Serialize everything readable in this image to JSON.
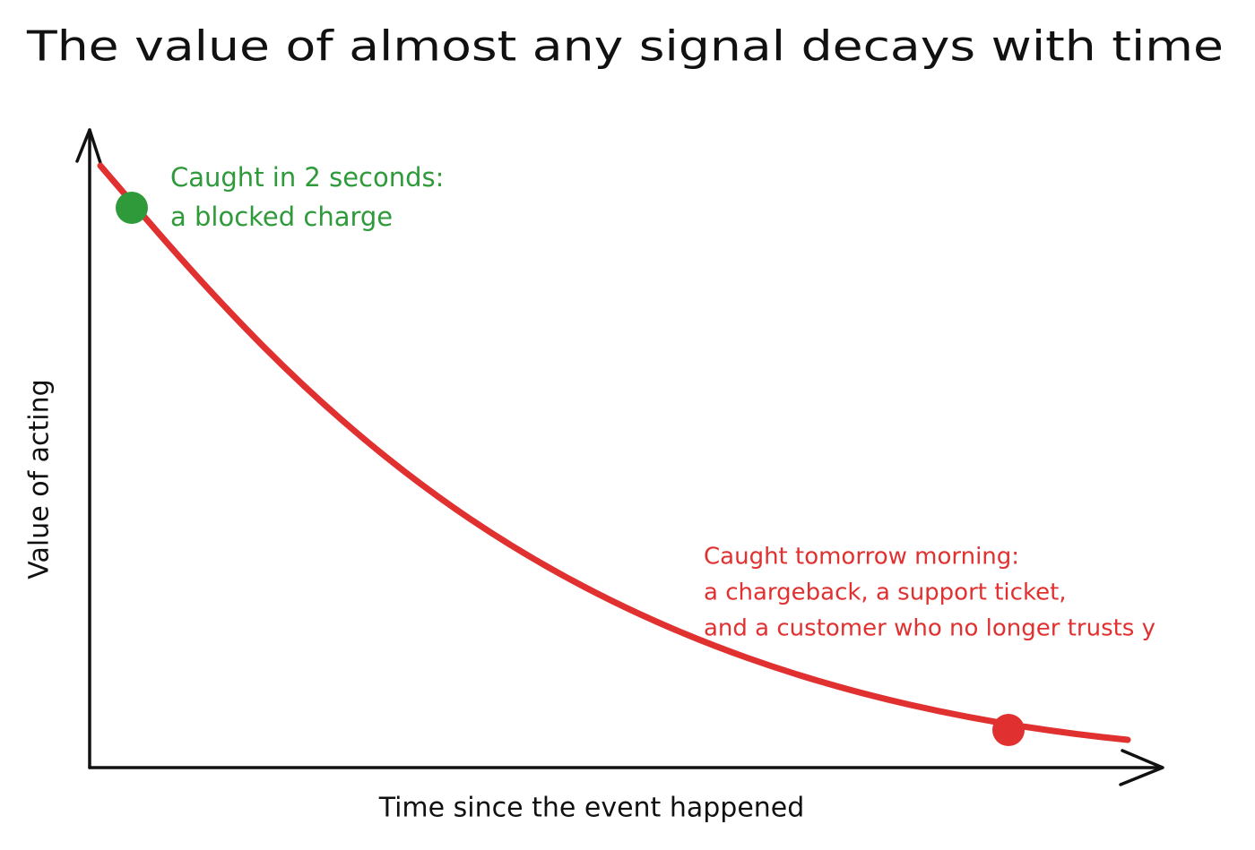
{
  "title": "The value of almost any signal decays with time",
  "y_axis_label": "Value of acting",
  "x_axis_label": "Time since the event happened",
  "annotations": [
    {
      "lines": [
        "Caught in 2 seconds:",
        "a blocked charge"
      ]
    },
    {
      "lines": [
        "Caught tomorrow morning:",
        "a chargeback, a support ticket,",
        "and a customer who no longer trusts y"
      ]
    }
  ]
}
